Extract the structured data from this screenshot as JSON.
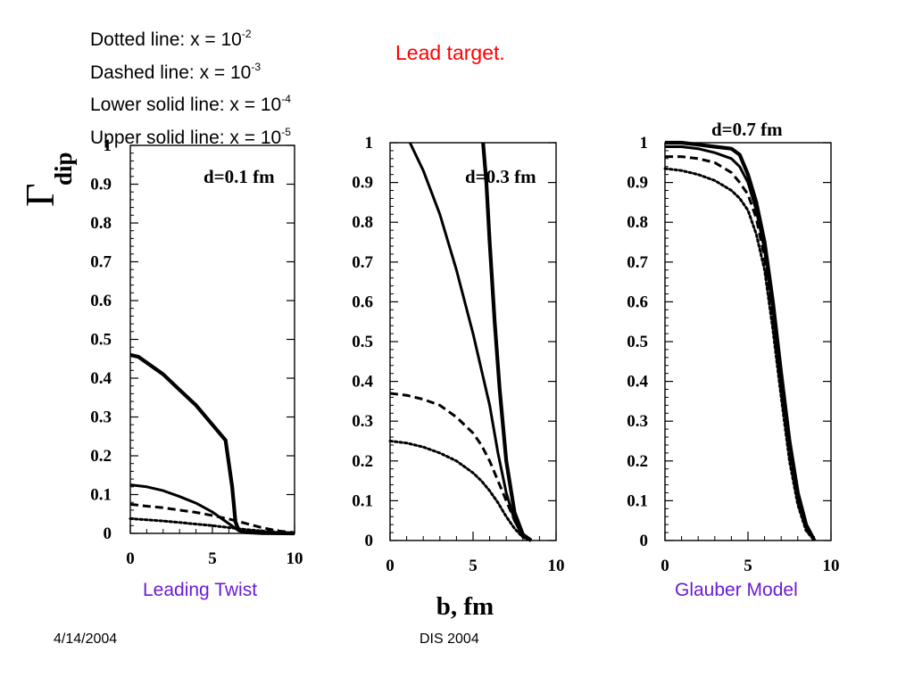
{
  "legend": {
    "dotted": {
      "text": "Dotted line: x = 10",
      "exp": "-2"
    },
    "dashed": {
      "text": "Dashed line: x = 10",
      "exp": "-3"
    },
    "lower_solid": {
      "text": "Lower solid line: x = 10",
      "exp": "-4"
    },
    "upper_solid": {
      "text": "Upper solid line: x = 10",
      "exp": "-5"
    }
  },
  "title": "Lead target.",
  "captions": {
    "left": "Leading Twist",
    "right": "Glauber Model"
  },
  "footer": {
    "date": "4/14/2004",
    "event": "DIS 2004"
  },
  "axes": {
    "ylabel_main": "Γ",
    "ylabel_sub": "dip",
    "xlabel": "b, fm",
    "yticks": [
      "0",
      "0.1",
      "0.2",
      "0.3",
      "0.4",
      "0.5",
      "0.6",
      "0.7",
      "0.8",
      "0.9",
      "1"
    ],
    "xticks": [
      "0",
      "5",
      "10"
    ]
  },
  "colors": {
    "title": "#ff0000",
    "captions": "#6a1bd6",
    "lines": "#000000"
  },
  "chart_data": [
    {
      "type": "line",
      "panel_label": "d=0.1 fm",
      "xlim": [
        0,
        10
      ],
      "ylim": [
        0,
        1
      ],
      "series": [
        {
          "style": "solid-thick",
          "x": [
            0,
            0.5,
            1,
            2,
            3,
            4,
            5,
            5.8,
            6.2,
            6.4,
            6.6,
            7,
            8,
            10
          ],
          "y": [
            0.46,
            0.455,
            0.44,
            0.41,
            0.37,
            0.33,
            0.28,
            0.24,
            0.12,
            0.03,
            0.008,
            0.003,
            0.001,
            0.0
          ]
        },
        {
          "style": "solid",
          "x": [
            0,
            1,
            2,
            3,
            4,
            5,
            6,
            6.5,
            7,
            10
          ],
          "y": [
            0.125,
            0.12,
            0.11,
            0.095,
            0.078,
            0.055,
            0.025,
            0.01,
            0.003,
            0.0
          ]
        },
        {
          "style": "dashed",
          "x": [
            0,
            1,
            2,
            3,
            4,
            5,
            6,
            7,
            8,
            9,
            10
          ],
          "y": [
            0.075,
            0.07,
            0.066,
            0.06,
            0.054,
            0.046,
            0.037,
            0.026,
            0.015,
            0.006,
            0.002
          ]
        },
        {
          "style": "dotted",
          "x": [
            0,
            1,
            2,
            3,
            4,
            5,
            6,
            7,
            8,
            9,
            10
          ],
          "y": [
            0.038,
            0.035,
            0.032,
            0.028,
            0.024,
            0.02,
            0.015,
            0.01,
            0.006,
            0.003,
            0.001
          ]
        }
      ]
    },
    {
      "type": "line",
      "panel_label": "d=0.3 fm",
      "xlim": [
        0,
        10
      ],
      "ylim": [
        0,
        1
      ],
      "series": [
        {
          "style": "solid-thick",
          "x": [
            5.6,
            5.8,
            6,
            6.3,
            6.6,
            7,
            7.5,
            8,
            8.5
          ],
          "y": [
            1.0,
            0.9,
            0.75,
            0.55,
            0.38,
            0.2,
            0.07,
            0.015,
            0.0
          ]
        },
        {
          "style": "solid",
          "x": [
            1.2,
            2,
            3,
            4,
            5,
            6,
            6.5,
            7,
            7.5,
            8,
            8.5
          ],
          "y": [
            1.0,
            0.93,
            0.82,
            0.68,
            0.52,
            0.34,
            0.22,
            0.12,
            0.05,
            0.01,
            0.0
          ]
        },
        {
          "style": "dashed",
          "x": [
            0,
            1,
            2,
            3,
            4,
            5,
            5.5,
            6,
            6.5,
            7,
            7.5,
            8,
            8.5
          ],
          "y": [
            0.37,
            0.365,
            0.355,
            0.34,
            0.31,
            0.27,
            0.24,
            0.2,
            0.15,
            0.1,
            0.05,
            0.015,
            0.0
          ]
        },
        {
          "style": "dotted",
          "x": [
            0,
            1,
            2,
            3,
            4,
            5,
            5.5,
            6,
            6.5,
            7,
            7.5,
            8,
            8.5
          ],
          "y": [
            0.25,
            0.245,
            0.235,
            0.22,
            0.2,
            0.17,
            0.15,
            0.125,
            0.095,
            0.06,
            0.03,
            0.008,
            0.0
          ]
        }
      ]
    },
    {
      "type": "line",
      "panel_label": "d=0.7 fm",
      "xlim": [
        0,
        10
      ],
      "ylim": [
        0,
        1
      ],
      "series": [
        {
          "style": "solid-thick",
          "x": [
            0,
            1,
            2,
            3,
            4,
            4.5,
            5,
            5.5,
            6,
            6.5,
            7,
            7.5,
            8,
            8.5,
            9
          ],
          "y": [
            1.0,
            1.0,
            0.995,
            0.99,
            0.985,
            0.97,
            0.92,
            0.85,
            0.75,
            0.6,
            0.42,
            0.25,
            0.12,
            0.04,
            0.0
          ]
        },
        {
          "style": "solid",
          "x": [
            0,
            1,
            2,
            3,
            4,
            4.5,
            5,
            5.5,
            6,
            6.5,
            7,
            7.5,
            8,
            8.5,
            9
          ],
          "y": [
            0.99,
            0.99,
            0.985,
            0.975,
            0.96,
            0.94,
            0.9,
            0.83,
            0.73,
            0.58,
            0.4,
            0.24,
            0.11,
            0.035,
            0.0
          ]
        },
        {
          "style": "dashed",
          "x": [
            0,
            1,
            2,
            3,
            4,
            4.5,
            5,
            5.5,
            6,
            6.5,
            7,
            7.5,
            8,
            8.5,
            9
          ],
          "y": [
            0.965,
            0.965,
            0.96,
            0.95,
            0.925,
            0.9,
            0.87,
            0.81,
            0.71,
            0.56,
            0.38,
            0.22,
            0.1,
            0.03,
            0.0
          ]
        },
        {
          "style": "dotted",
          "x": [
            0,
            1,
            2,
            3,
            4,
            4.5,
            5,
            5.5,
            6,
            6.5,
            7,
            7.5,
            8,
            8.5,
            9
          ],
          "y": [
            0.935,
            0.93,
            0.92,
            0.905,
            0.88,
            0.86,
            0.83,
            0.77,
            0.68,
            0.53,
            0.36,
            0.2,
            0.09,
            0.025,
            0.0
          ]
        }
      ]
    }
  ]
}
